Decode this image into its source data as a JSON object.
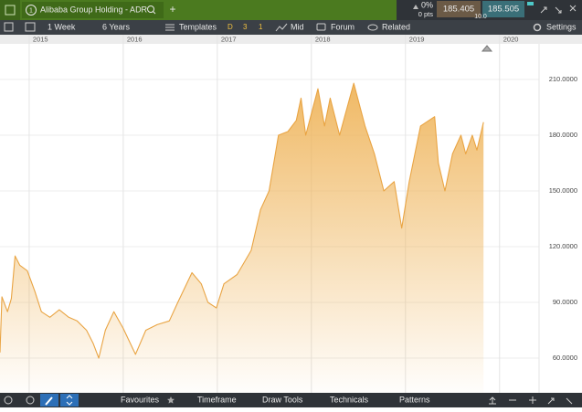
{
  "header": {
    "info_icon": "1",
    "title": "Alibaba Group Holding - ADR",
    "add_tab": "+",
    "change_pct": "0%",
    "change_pts": "0 pts",
    "sell": "185.405",
    "buy": "185.505",
    "quantity": "10.0"
  },
  "toolbar": {
    "interval": "1 Week",
    "range": "6 Years",
    "templates": "Templates",
    "d": "D",
    "three": "3",
    "one": "1",
    "mid": "Mid",
    "forum": "Forum",
    "related": "Related",
    "settings": "Settings"
  },
  "chart_data": {
    "type": "line",
    "color": "#e9a443",
    "grid": true,
    "x": [
      2014.69,
      2014.71,
      2014.77,
      2014.81,
      2014.85,
      2014.9,
      2014.98,
      2015.06,
      2015.13,
      2015.22,
      2015.32,
      2015.42,
      2015.51,
      2015.61,
      2015.68,
      2015.74,
      2015.81,
      2015.9,
      2016.0,
      2016.13,
      2016.24,
      2016.36,
      2016.49,
      2016.58,
      2016.73,
      2016.83,
      2016.9,
      2016.99,
      2017.07,
      2017.21,
      2017.36,
      2017.46,
      2017.55,
      2017.65,
      2017.75,
      2017.84,
      2017.89,
      2017.94,
      2018.07,
      2018.14,
      2018.2,
      2018.3,
      2018.45,
      2018.57,
      2018.67,
      2018.77,
      2018.88,
      2018.96,
      2019.04,
      2019.16,
      2019.31,
      2019.35,
      2019.42,
      2019.5,
      2019.59,
      2019.64,
      2019.71,
      2019.76,
      2019.83
    ],
    "values": [
      63,
      93,
      85,
      92,
      115,
      110,
      107,
      96,
      85,
      82,
      86,
      82,
      80,
      75,
      68,
      60,
      75,
      85,
      76,
      62,
      75,
      78,
      80,
      90,
      106,
      100,
      90,
      87,
      100,
      105,
      118,
      140,
      150,
      180,
      182,
      188,
      200,
      180,
      205,
      185,
      200,
      180,
      208,
      185,
      170,
      150,
      155,
      130,
      155,
      185,
      190,
      165,
      150,
      170,
      180,
      170,
      180,
      172,
      187
    ],
    "xlim": [
      2014.69,
      2020.42
    ],
    "xticks": [
      2015,
      2016,
      2017,
      2018,
      2019,
      2020
    ],
    "ylim": [
      41.3,
      229.2
    ],
    "yticks": [
      {
        "value": 210,
        "label": "210.0000"
      },
      {
        "value": 180,
        "label": "180.0000"
      },
      {
        "value": 150,
        "label": "150.0000"
      },
      {
        "value": 120,
        "label": "120.0000"
      },
      {
        "value": 90,
        "label": "90.0000"
      },
      {
        "value": 60,
        "label": "60.0000"
      }
    ]
  },
  "bottom_bar": {
    "favourites": "Favourites",
    "timeframe": "Timeframe",
    "draw_tools": "Draw Tools",
    "technicals": "Technicals",
    "patterns": "Patterns"
  }
}
